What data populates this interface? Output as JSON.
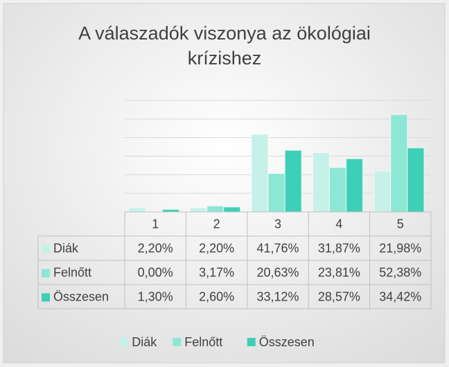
{
  "chart_data": {
    "type": "bar",
    "title": "A válaszadók viszonya az ökológiai krízishez",
    "categories": [
      "1",
      "2",
      "3",
      "4",
      "5"
    ],
    "series": [
      {
        "name": "Diák",
        "color": "#c6f1e9",
        "values": [
          2.2,
          2.2,
          41.76,
          31.87,
          21.98
        ],
        "value_labels": [
          "2,20%",
          "2,20%",
          "41,76%",
          "31,87%",
          "21,98%"
        ]
      },
      {
        "name": "Felnőtt",
        "color": "#8de7d5",
        "values": [
          0,
          3.17,
          20.63,
          23.81,
          52.38
        ],
        "value_labels": [
          "0,00%",
          "3,17%",
          "20,63%",
          "23,81%",
          "52,38%"
        ]
      },
      {
        "name": "Összesen",
        "color": "#3ecfb7",
        "values": [
          1.3,
          2.6,
          33.12,
          28.57,
          34.42
        ],
        "value_labels": [
          "1,30%",
          "2,60%",
          "33,12%",
          "28,57%",
          "34,42%"
        ]
      }
    ],
    "ylim": [
      0,
      60
    ],
    "yticks": [
      0,
      10,
      20,
      30,
      40,
      50,
      60
    ],
    "grid": true,
    "legend": "bottom"
  }
}
